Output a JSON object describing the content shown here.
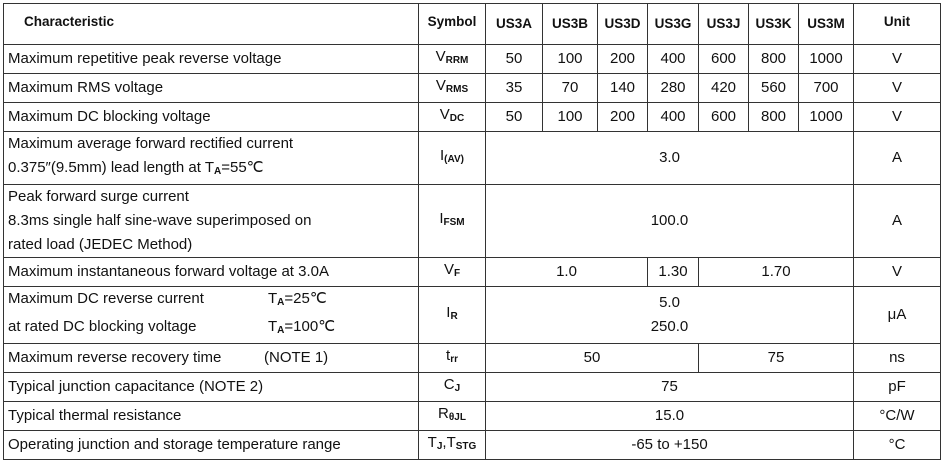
{
  "header": {
    "characteristic": "Characteristic",
    "symbol": "Symbol",
    "parts": [
      "US3A",
      "US3B",
      "US3D",
      "US3G",
      "US3J",
      "US3K",
      "US3M"
    ],
    "unit": "Unit"
  },
  "rows": [
    {
      "char": "Maximum repetitive peak reverse voltage",
      "sym": "V",
      "sub": "RRM",
      "values": [
        "50",
        "100",
        "200",
        "400",
        "600",
        "800",
        "1000"
      ],
      "unit": "V"
    },
    {
      "char": "Maximum RMS voltage",
      "sym": "V",
      "sub": "RMS",
      "values": [
        "35",
        "70",
        "140",
        "280",
        "420",
        "560",
        "700"
      ],
      "unit": "V"
    },
    {
      "char": "Maximum DC blocking voltage",
      "sym": "V",
      "sub": "DC",
      "values": [
        "50",
        "100",
        "200",
        "400",
        "600",
        "800",
        "1000"
      ],
      "unit": "V"
    },
    {
      "char1": "Maximum average forward rectified current",
      "char2a": "0.375″(9.5mm) lead length at T",
      "char2sub": "A",
      "char2b": "=55℃",
      "sym": "I",
      "sub": "(AV)",
      "value": "3.0",
      "unit": "A"
    },
    {
      "char1": "Peak forward surge current",
      "char2": "8.3ms single half sine-wave superimposed on",
      "char3": "rated load (JEDEC Method)",
      "sym": "I",
      "sub": "FSM",
      "value": "100.0",
      "unit": "A"
    },
    {
      "char": "Maximum instantaneous forward voltage at 3.0A",
      "sym": "V",
      "sub": "F",
      "values": [
        "1.0",
        "1.30",
        "1.70"
      ],
      "unit": "V"
    },
    {
      "char1": "Maximum DC reverse current",
      "cond1": "=25℃",
      "char2": "at rated DC blocking voltage",
      "cond2": "=100℃",
      "cond_sym": "T",
      "cond_sub": "A",
      "sym": "I",
      "sub": "R",
      "value1": "5.0",
      "value2": "250.0",
      "unit": "μA"
    },
    {
      "char": "Maximum reverse recovery time",
      "note": "(NOTE 1)",
      "sym": "t",
      "sub": "rr",
      "values": [
        "50",
        "75"
      ],
      "unit": "ns"
    },
    {
      "char": "Typical junction capacitance (NOTE 2)",
      "sym": "C",
      "sub": "J",
      "value": "75",
      "unit": "pF"
    },
    {
      "char": "Typical thermal resistance",
      "sym": "R",
      "sub": "θJL",
      "value": "15.0",
      "unit": "°C/W"
    },
    {
      "char": "Operating junction and storage temperature range",
      "sym": "T",
      "sub": "J",
      "sym2": ",T",
      "sub2": "STG",
      "value": "-65 to +150",
      "unit": "°C"
    }
  ]
}
